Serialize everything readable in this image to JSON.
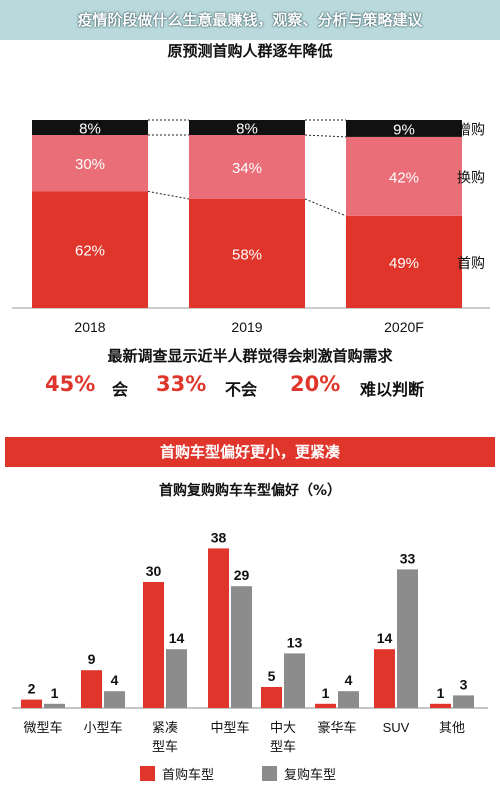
{
  "page": {
    "header_title": "疫情阶段做什么生意最赚钱，观察、分析与策略建议",
    "section1_title": "原预测首购人群逐年降低",
    "survey_title": "最新调查显示近半人群觉得会刺激首购需求",
    "survey": [
      {
        "value": "45%",
        "label": "会"
      },
      {
        "value": "33%",
        "label": "不会"
      },
      {
        "value": "20%",
        "label": "难以判断"
      }
    ],
    "banner_title": "首购车型偏好更小，更紧凑",
    "section2_title": "首购复购购车车型偏好（%）"
  },
  "chart_data": [
    {
      "type": "bar",
      "stacked": true,
      "categories": [
        "2018",
        "2019",
        "2020F"
      ],
      "series": [
        {
          "name": "首购",
          "values": [
            62,
            58,
            49
          ],
          "labels": [
            "62%",
            "58%",
            "49%"
          ],
          "color": "#e0352b"
        },
        {
          "name": "换购",
          "values": [
            30,
            34,
            42
          ],
          "labels": [
            "30%",
            "34%",
            "42%"
          ],
          "color": "#e96e78"
        },
        {
          "name": "增购",
          "values": [
            8,
            8,
            9
          ],
          "labels": [
            "8%",
            "8%",
            "9%"
          ],
          "color": "#111111"
        }
      ],
      "ylim": [
        0,
        100
      ],
      "legend_position": "right"
    },
    {
      "type": "bar",
      "categories": [
        "微型车",
        "小型车",
        "紧凑\n型车",
        "中型车",
        "中大\n型车",
        "豪华车",
        "SUV",
        "其他"
      ],
      "series": [
        {
          "name": "首购车型",
          "values": [
            2,
            9,
            30,
            38,
            5,
            1,
            14,
            1
          ],
          "color": "#e0352b"
        },
        {
          "name": "复购车型",
          "values": [
            1,
            4,
            14,
            29,
            13,
            4,
            33,
            3
          ],
          "color": "#8c8c8c"
        }
      ],
      "ylim": [
        0,
        40
      ],
      "legend_position": "bottom"
    }
  ]
}
